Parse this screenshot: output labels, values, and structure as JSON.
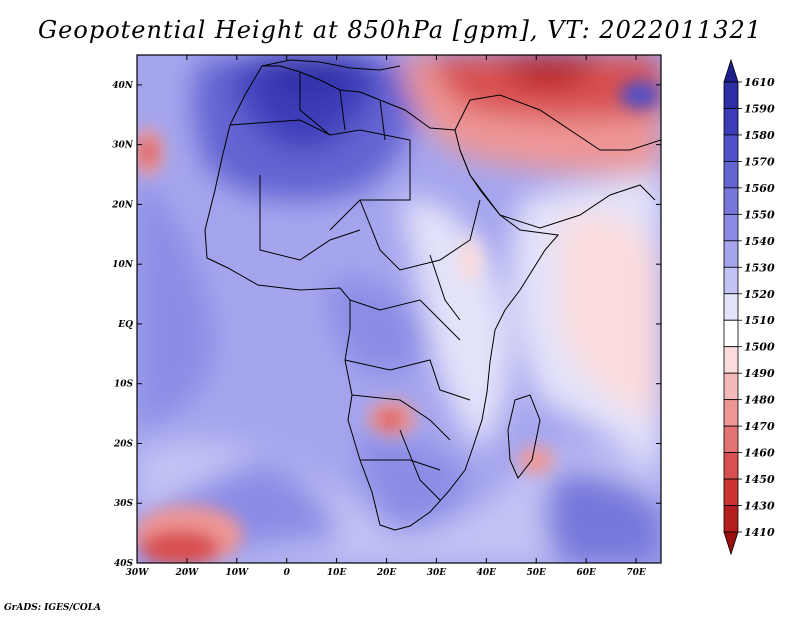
{
  "title": "Geopotential Height at 850hPa [gpm], VT: 2022011321",
  "footer": "GrADS: IGES/COLA",
  "map": {
    "lat_labels": [
      "40N",
      "30N",
      "20N",
      "10N",
      "EQ",
      "10S",
      "20S",
      "30S",
      "40S"
    ],
    "lon_labels": [
      "30W",
      "20W",
      "10W",
      "0",
      "10E",
      "20E",
      "30E",
      "40E",
      "50E",
      "60E",
      "70E"
    ],
    "lat_range": [
      -40,
      45
    ],
    "lon_range": [
      -30,
      75
    ],
    "units": "gpm",
    "level": "850hPa",
    "valid_time": "2022011321"
  },
  "colorbar": {
    "levels": [
      "1610",
      "1590",
      "1580",
      "1570",
      "1560",
      "1550",
      "1540",
      "1530",
      "1520",
      "1510",
      "1500",
      "1490",
      "1480",
      "1470",
      "1460",
      "1450",
      "1430",
      "1410"
    ],
    "colors": [
      "#1e1e8c",
      "#2d2da5",
      "#3c3cb9",
      "#5050c8",
      "#6464d2",
      "#7878dc",
      "#8c8ce6",
      "#a5a5ee",
      "#c3c3f5",
      "#e3e3fa",
      "#ffffff",
      "#fbdcdc",
      "#f5b9b9",
      "#ee9696",
      "#e47373",
      "#d95050",
      "#cc3333",
      "#b41e1e",
      "#9b0f0f"
    ]
  }
}
